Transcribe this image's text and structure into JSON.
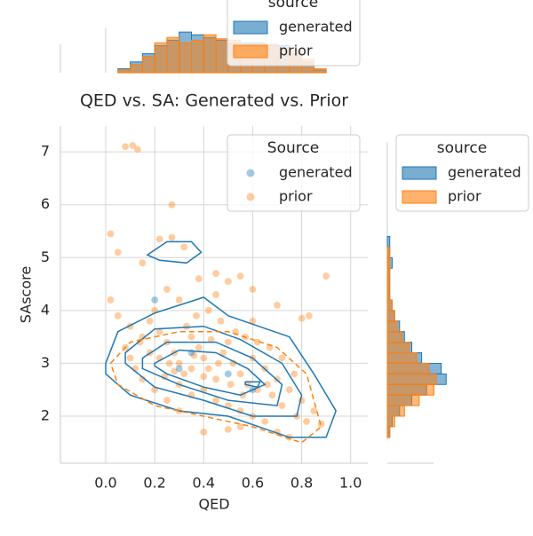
{
  "chart_data": [
    {
      "type": "scatter",
      "title": "QED vs. SA: Generated vs. Prior",
      "x_label": "QED",
      "y_label": "SAscore",
      "xlim": [
        -0.185,
        1.07
      ],
      "ylim": [
        1.11,
        7.49
      ],
      "xticks": [
        {
          "value": 0,
          "label": "0.0"
        },
        0.2,
        0.4,
        0.6,
        0.8,
        {
          "value": 1,
          "label": "1.0"
        }
      ],
      "yticks": [
        2,
        3,
        4,
        5,
        6,
        7
      ],
      "grid": true,
      "legend_title": "Source",
      "legend": "upper right",
      "series": [
        {
          "name": "generated",
          "color": "#1f77b4",
          "contour_style": "solid",
          "x": [
            0.2,
            0.35,
            0.5,
            0.6,
            0.3
          ],
          "y": [
            4.2,
            3.2,
            2.8,
            2.5,
            2.9
          ],
          "contours": [
            {
              "x": [
                0.0,
                0.05,
                0.2,
                0.4,
                0.5,
                0.75,
                0.85,
                0.94,
                0.9,
                0.75,
                0.5,
                0.3,
                0.1,
                0.0
              ],
              "y": [
                3.0,
                3.6,
                3.95,
                4.25,
                3.9,
                3.5,
                2.8,
                2.1,
                1.6,
                1.6,
                2.0,
                2.1,
                2.4,
                2.8
              ]
            },
            {
              "x": [
                0.17,
                0.25,
                0.35,
                0.39,
                0.33,
                0.22,
                0.17
              ],
              "y": [
                5.05,
                5.3,
                5.3,
                5.1,
                4.9,
                4.95,
                5.05
              ]
            },
            {
              "x": [
                0.08,
                0.2,
                0.4,
                0.55,
                0.72,
                0.8,
                0.78,
                0.6,
                0.4,
                0.2,
                0.08
              ],
              "y": [
                3.2,
                3.65,
                3.7,
                3.45,
                3.0,
                2.4,
                2.0,
                2.0,
                2.3,
                2.55,
                3.0
              ]
            },
            {
              "x": [
                0.15,
                0.25,
                0.45,
                0.6,
                0.72,
                0.7,
                0.5,
                0.3,
                0.15
              ],
              "y": [
                3.1,
                3.4,
                3.4,
                3.1,
                2.6,
                2.2,
                2.3,
                2.6,
                2.9
              ]
            },
            {
              "x": [
                0.2,
                0.3,
                0.45,
                0.58,
                0.65,
                0.55,
                0.4,
                0.25,
                0.2
              ],
              "y": [
                3.0,
                3.25,
                3.2,
                2.9,
                2.6,
                2.4,
                2.55,
                2.8,
                2.95
              ]
            },
            {
              "x": [
                0.57,
                0.63,
                0.62,
                0.57
              ],
              "y": [
                2.65,
                2.65,
                2.55,
                2.6
              ]
            }
          ]
        },
        {
          "name": "prior",
          "color": "#ff7f0e",
          "contour_style": "dashed",
          "x": [
            0.08,
            0.11,
            0.13,
            0.27,
            0.02,
            0.05,
            0.9,
            0.22,
            0.27,
            0.15,
            0.32,
            0.38,
            0.45,
            0.5,
            0.55,
            0.6,
            0.7,
            0.8,
            0.83,
            0.02,
            0.05,
            0.1,
            0.15,
            0.18,
            0.22,
            0.25,
            0.28,
            0.3,
            0.32,
            0.35,
            0.38,
            0.4,
            0.42,
            0.45,
            0.48,
            0.5,
            0.52,
            0.55,
            0.58,
            0.6,
            0.62,
            0.65,
            0.68,
            0.7,
            0.72,
            0.75,
            0.78,
            0.8,
            0.82,
            0.85,
            0.88,
            0.75,
            0.7,
            0.5,
            0.55,
            0.4,
            0.3,
            0.25,
            0.2,
            0.15,
            0.12,
            0.1,
            0.08,
            0.35,
            0.4,
            0.45,
            0.5,
            0.55,
            0.6,
            0.65,
            0.33,
            0.37,
            0.42,
            0.47,
            0.53,
            0.57,
            0.62,
            0.67,
            0.72,
            0.77,
            0.3,
            0.25,
            0.2,
            0.45,
            0.6,
            0.35,
            0.4,
            0.3,
            0.28,
            0.46,
            0.51,
            0.56,
            0.66,
            0.26,
            0.22,
            0.18,
            0.14,
            0.24,
            0.36,
            0.43
          ],
          "y": [
            7.1,
            7.12,
            7.05,
            6.0,
            5.45,
            5.1,
            4.65,
            5.35,
            5.38,
            4.9,
            5.2,
            4.6,
            4.7,
            4.55,
            4.65,
            4.4,
            4.1,
            3.85,
            3.9,
            4.2,
            3.9,
            3.7,
            3.5,
            3.8,
            3.6,
            3.4,
            3.2,
            3.0,
            2.8,
            3.5,
            3.3,
            3.1,
            2.9,
            2.7,
            3.2,
            3.4,
            3.0,
            2.8,
            2.6,
            3.1,
            2.5,
            2.9,
            2.4,
            2.7,
            2.2,
            2.5,
            2.0,
            2.3,
            1.9,
            2.1,
            1.85,
            1.6,
            1.7,
            1.75,
            1.8,
            1.7,
            2.1,
            2.3,
            2.5,
            2.7,
            2.9,
            3.1,
            3.3,
            2.4,
            2.5,
            2.3,
            2.2,
            2.1,
            2.0,
            1.9,
            3.7,
            3.9,
            4.0,
            3.8,
            3.6,
            3.5,
            3.4,
            3.3,
            3.1,
            2.8,
            4.2,
            4.4,
            4.0,
            4.3,
            3.8,
            2.9,
            2.75,
            2.6,
            2.85,
            3.0,
            2.6,
            2.4,
            2.6,
            3.0,
            3.1,
            3.2,
            3.4,
            2.75,
            3.15,
            3.45
          ],
          "contours": [
            {
              "x": [
                0.02,
                0.1,
                0.3,
                0.5,
                0.7,
                0.82,
                0.88,
                0.8,
                0.6,
                0.4,
                0.2,
                0.05,
                0.02
              ],
              "y": [
                3.0,
                3.4,
                3.6,
                3.6,
                3.3,
                2.8,
                1.8,
                1.5,
                1.8,
                2.0,
                2.2,
                2.6,
                3.0
              ]
            }
          ]
        }
      ]
    },
    {
      "type": "histogram",
      "orientation": "vertical",
      "legend_title": "source",
      "legend": "upper right",
      "bins": [
        0.05,
        0.1,
        0.15,
        0.2,
        0.25,
        0.3,
        0.35,
        0.4,
        0.45,
        0.5,
        0.55,
        0.6,
        0.65,
        0.7,
        0.75,
        0.8,
        0.85,
        0.9
      ],
      "ylim": [
        0,
        34
      ],
      "series": [
        {
          "name": "generated",
          "color": "#1f77b4",
          "values": [
            3,
            8,
            14,
            20,
            24,
            30,
            28,
            26,
            24,
            22,
            22,
            22,
            20,
            20,
            14,
            8,
            2
          ]
        },
        {
          "name": "prior",
          "color": "#ff7f0e",
          "values": [
            2,
            6,
            12,
            22,
            26,
            22,
            24,
            28,
            25,
            24,
            20,
            21,
            21,
            18,
            16,
            10,
            3
          ]
        }
      ]
    },
    {
      "type": "histogram",
      "orientation": "horizontal",
      "legend_title": "source",
      "legend": "upper right",
      "bins": [
        1.6,
        1.8,
        2.0,
        2.2,
        2.4,
        2.6,
        2.8,
        3.0,
        3.2,
        3.4,
        3.6,
        3.8,
        4.0,
        4.2,
        4.4,
        4.6,
        4.8,
        5.0,
        5.2,
        5.4,
        5.6,
        5.8,
        6.0,
        6.2,
        6.4,
        6.6,
        6.8,
        7.0,
        7.2
      ],
      "xlim": [
        0,
        25
      ],
      "series": [
        {
          "name": "generated",
          "color": "#1f77b4",
          "values": [
            1,
            2,
            5,
            10,
            16,
            24,
            22,
            14,
            10,
            7,
            5,
            3,
            2,
            1,
            1,
            1,
            2,
            1,
            1,
            0,
            0,
            0,
            0,
            0,
            0,
            0,
            0,
            0
          ]
        },
        {
          "name": "prior",
          "color": "#ff7f0e",
          "values": [
            1,
            3,
            7,
            13,
            19,
            20,
            17,
            12,
            9,
            6,
            4,
            3,
            2,
            1,
            1,
            1,
            1,
            1,
            0,
            0,
            0,
            0,
            0,
            0,
            0,
            0,
            0,
            0
          ]
        }
      ]
    }
  ]
}
